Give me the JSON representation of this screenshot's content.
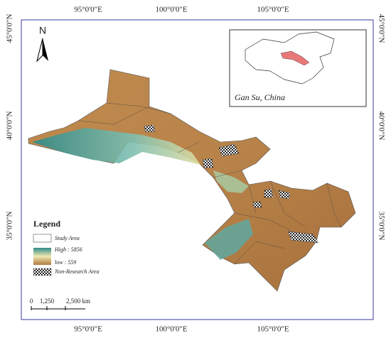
{
  "graticule": {
    "top": [
      "95°0'0\"E",
      "100°0'0\"E",
      "105°0'0\"E"
    ],
    "bottom": [
      "95°0'0\"E",
      "100°0'0\"E",
      "105°0'0\"E"
    ],
    "left": [
      "45°0'0\"N",
      "40°0'0\"N",
      "35°0'0\"N"
    ],
    "right": [
      "45°0'0\"N",
      "40°0'0\"N",
      "35°0'0\"N"
    ]
  },
  "north_arrow": "N",
  "inset": {
    "caption": "Gan Su, China"
  },
  "legend": {
    "title": "Legend",
    "items": [
      "Study Area",
      "High : 5856",
      "low : 559",
      "Non-Research Area"
    ]
  },
  "scale_bar": {
    "labels": [
      "0",
      "1,250",
      "2,500 km"
    ]
  }
}
